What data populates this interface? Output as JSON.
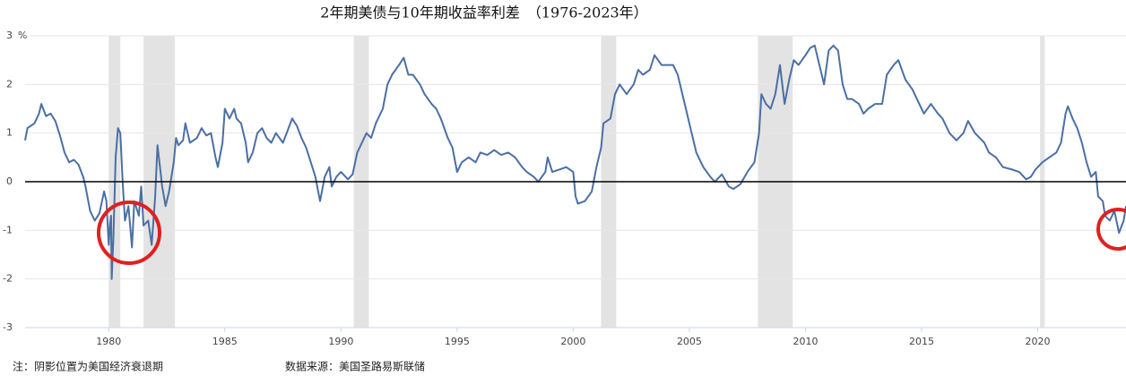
{
  "chart_data": {
    "type": "line",
    "title": "2年期美债与10年期收益率利差　（1976-2023年）",
    "ylabel": "%",
    "notes": [
      "注：阴影位置为美国经济衰退期",
      "数据来源：美国圣路易斯联储"
    ],
    "color": "#4a6fa5",
    "xlim": [
      1976.4,
      2023.8
    ],
    "xticks": [
      1980,
      1985,
      1990,
      1995,
      2000,
      2005,
      2010,
      2015,
      2020
    ],
    "ylim": [
      -3,
      3
    ],
    "yticks": [
      3,
      2,
      1,
      0,
      -1,
      -2,
      -3
    ],
    "grid": true,
    "recessions": [
      [
        1980.0,
        1980.5
      ],
      [
        1981.5,
        1982.85
      ],
      [
        1990.55,
        1991.2
      ],
      [
        2001.2,
        2001.85
      ],
      [
        2007.95,
        2009.45
      ],
      [
        2020.1,
        2020.3
      ]
    ],
    "x": [
      1976.4,
      1976.5,
      1976.8,
      1977.0,
      1977.1,
      1977.3,
      1977.5,
      1977.7,
      1977.9,
      1978.1,
      1978.3,
      1978.5,
      1978.7,
      1978.9,
      1979.0,
      1979.2,
      1979.4,
      1979.6,
      1979.8,
      1979.9,
      1980.0,
      1980.05,
      1980.1,
      1980.13,
      1980.2,
      1980.3,
      1980.4,
      1980.5,
      1980.6,
      1980.7,
      1980.85,
      1981.0,
      1981.1,
      1981.3,
      1981.4,
      1981.5,
      1981.7,
      1981.85,
      1982.0,
      1982.1,
      1982.3,
      1982.45,
      1982.6,
      1982.8,
      1982.9,
      1983.0,
      1983.2,
      1983.3,
      1983.5,
      1983.8,
      1984.0,
      1984.2,
      1984.4,
      1984.6,
      1984.7,
      1984.9,
      1985.0,
      1985.2,
      1985.4,
      1985.5,
      1985.7,
      1985.9,
      1986.0,
      1986.2,
      1986.4,
      1986.6,
      1986.8,
      1987.0,
      1987.2,
      1987.5,
      1987.7,
      1987.9,
      1988.1,
      1988.3,
      1988.5,
      1988.7,
      1988.9,
      1989.1,
      1989.3,
      1989.5,
      1989.6,
      1989.8,
      1990.0,
      1990.3,
      1990.5,
      1990.7,
      1990.9,
      1991.1,
      1991.3,
      1991.5,
      1991.8,
      1992.0,
      1992.2,
      1992.5,
      1992.7,
      1992.9,
      1993.1,
      1993.4,
      1993.6,
      1993.9,
      1994.1,
      1994.3,
      1994.6,
      1994.8,
      1995.0,
      1995.2,
      1995.5,
      1995.8,
      1996.0,
      1996.3,
      1996.6,
      1996.9,
      1997.2,
      1997.5,
      1997.8,
      1998.0,
      1998.3,
      1998.5,
      1998.8,
      1998.9,
      1999.1,
      1999.4,
      1999.7,
      2000.0,
      2000.1,
      2000.2,
      2000.5,
      2000.8,
      2001.0,
      2001.2,
      2001.3,
      2001.6,
      2001.8,
      2002.0,
      2002.3,
      2002.6,
      2002.8,
      2003.0,
      2003.3,
      2003.5,
      2003.8,
      2004.0,
      2004.3,
      2004.5,
      2004.8,
      2005.0,
      2005.3,
      2005.6,
      2005.9,
      2006.1,
      2006.4,
      2006.7,
      2006.9,
      2007.2,
      2007.5,
      2007.8,
      2008.0,
      2008.1,
      2008.3,
      2008.5,
      2008.7,
      2008.9,
      2009.1,
      2009.3,
      2009.5,
      2009.7,
      2010.0,
      2010.2,
      2010.4,
      2010.6,
      2010.8,
      2011.0,
      2011.2,
      2011.4,
      2011.6,
      2011.8,
      2012.0,
      2012.3,
      2012.5,
      2012.7,
      2013.0,
      2013.3,
      2013.5,
      2013.8,
      2014.0,
      2014.3,
      2014.6,
      2014.9,
      2015.1,
      2015.4,
      2015.7,
      2015.9,
      2016.2,
      2016.5,
      2016.8,
      2017.0,
      2017.3,
      2017.7,
      2017.9,
      2018.2,
      2018.5,
      2018.9,
      2019.2,
      2019.5,
      2019.7,
      2019.9,
      2020.2,
      2020.5,
      2020.8,
      2021.0,
      2021.2,
      2021.3,
      2021.5,
      2021.7,
      2021.9,
      2022.1,
      2022.3,
      2022.5,
      2022.6,
      2022.8,
      2022.9,
      2023.1,
      2023.3,
      2023.5,
      2023.7,
      2023.8
    ],
    "values": [
      0.85,
      1.1,
      1.2,
      1.4,
      1.6,
      1.35,
      1.4,
      1.25,
      0.95,
      0.6,
      0.4,
      0.45,
      0.35,
      0.1,
      -0.1,
      -0.6,
      -0.8,
      -0.65,
      -0.2,
      -0.4,
      -1.3,
      -0.9,
      -0.7,
      -2.0,
      -1.2,
      0.5,
      1.1,
      1.0,
      0.0,
      -0.8,
      -0.5,
      -1.35,
      -0.4,
      -0.7,
      -0.1,
      -0.9,
      -0.8,
      -1.3,
      -0.3,
      0.75,
      -0.1,
      -0.5,
      -0.2,
      0.4,
      0.9,
      0.75,
      0.85,
      1.2,
      0.8,
      0.9,
      1.1,
      0.95,
      1.0,
      0.5,
      0.3,
      0.8,
      1.5,
      1.3,
      1.5,
      1.3,
      1.2,
      0.8,
      0.4,
      0.6,
      1.0,
      1.1,
      0.9,
      0.8,
      1.0,
      0.8,
      1.05,
      1.3,
      1.15,
      0.9,
      0.7,
      0.4,
      0.1,
      -0.4,
      0.1,
      0.3,
      -0.1,
      0.1,
      0.2,
      0.05,
      0.15,
      0.6,
      0.8,
      1.0,
      0.9,
      1.2,
      1.5,
      2.0,
      2.2,
      2.4,
      2.55,
      2.2,
      2.2,
      2.0,
      1.8,
      1.6,
      1.5,
      1.3,
      0.9,
      0.7,
      0.2,
      0.4,
      0.5,
      0.4,
      0.6,
      0.55,
      0.65,
      0.55,
      0.6,
      0.5,
      0.3,
      0.2,
      0.1,
      0.0,
      0.2,
      0.5,
      0.2,
      0.25,
      0.3,
      0.2,
      -0.3,
      -0.45,
      -0.4,
      -0.2,
      0.3,
      0.7,
      1.2,
      1.3,
      1.8,
      2.0,
      1.8,
      2.0,
      2.3,
      2.2,
      2.3,
      2.6,
      2.4,
      2.4,
      2.4,
      2.2,
      1.6,
      1.2,
      0.6,
      0.3,
      0.1,
      0.0,
      0.15,
      -0.1,
      -0.15,
      -0.05,
      0.2,
      0.4,
      1.0,
      1.8,
      1.6,
      1.5,
      1.8,
      2.4,
      1.6,
      2.1,
      2.5,
      2.4,
      2.6,
      2.75,
      2.8,
      2.4,
      2.0,
      2.7,
      2.8,
      2.7,
      2.0,
      1.7,
      1.7,
      1.6,
      1.4,
      1.5,
      1.6,
      1.6,
      2.2,
      2.4,
      2.5,
      2.1,
      1.9,
      1.6,
      1.4,
      1.6,
      1.4,
      1.3,
      1.0,
      0.85,
      1.0,
      1.25,
      1.0,
      0.8,
      0.6,
      0.5,
      0.3,
      0.25,
      0.2,
      0.05,
      0.1,
      0.25,
      0.4,
      0.5,
      0.6,
      0.8,
      1.4,
      1.55,
      1.3,
      1.1,
      0.8,
      0.4,
      0.1,
      0.2,
      -0.3,
      -0.4,
      -0.7,
      -0.8,
      -0.6,
      -1.05,
      -0.8,
      -0.5
    ]
  }
}
